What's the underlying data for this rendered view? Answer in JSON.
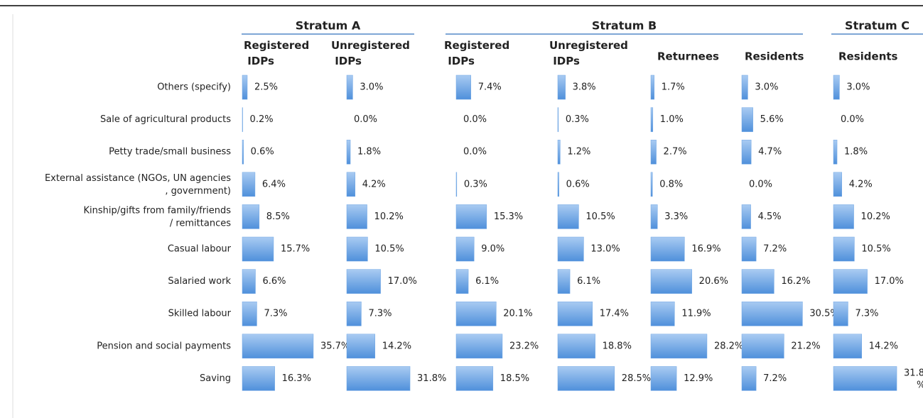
{
  "chart_data": {
    "type": "bar",
    "orientation": "horizontal",
    "categories": [
      "Others (specify)",
      "Sale of agricultural products",
      "Petty trade/small business",
      "External assistance (NGOs, UN agencies, government)",
      "Kinship/gifts from family/friends/ remittances",
      "Casual labour",
      "Salaried work",
      "Skilled labour",
      "Pension and social payments",
      "Saving"
    ],
    "groups": [
      {
        "name": "Stratum A",
        "series": [
          {
            "name": "Registered IDPs",
            "color": "#6fa6e4",
            "values": [
              2.5,
              0.2,
              0.6,
              6.4,
              8.5,
              15.7,
              6.6,
              7.3,
              35.7,
              16.3
            ],
            "value_labels": [
              "2.5%",
              "0.2%",
              "0.6%",
              "6.4%",
              "8.5%",
              "15.7%",
              "6.6%",
              "7.3%",
              "35.7%",
              "16.3%"
            ]
          },
          {
            "name": "Unregistered IDPs",
            "color": "#6fa6e4",
            "values": [
              3.0,
              0.0,
              1.8,
              4.2,
              10.2,
              10.5,
              17.0,
              7.3,
              14.2,
              31.8
            ],
            "value_labels": [
              "3.0%",
              "0.0%",
              "1.8%",
              "4.2%",
              "10.2%",
              "10.5%",
              "17.0%",
              "7.3%",
              "14.2%",
              "31.8%"
            ]
          }
        ]
      },
      {
        "name": "Stratum B",
        "series": [
          {
            "name": "Registered IDPs",
            "color": "#6fa6e4",
            "values": [
              7.4,
              0.0,
              0.0,
              0.3,
              15.3,
              9.0,
              6.1,
              20.1,
              23.2,
              18.5
            ],
            "value_labels": [
              "7.4%",
              "0.0%",
              "0.0%",
              "0.3%",
              "15.3%",
              "9.0%",
              "6.1%",
              "20.1%",
              "23.2%",
              "18.5%"
            ]
          },
          {
            "name": "Unregistered IDPs",
            "color": "#6fa6e4",
            "values": [
              3.8,
              0.3,
              1.2,
              0.6,
              10.5,
              13.0,
              6.1,
              17.4,
              18.8,
              28.5
            ],
            "value_labels": [
              "3.8%",
              "0.3%",
              "1.2%",
              "0.6%",
              "10.5%",
              "13.0%",
              "6.1%",
              "17.4%",
              "18.8%",
              "28.5%"
            ]
          },
          {
            "name": "Returnees",
            "color": "#6fa6e4",
            "values": [
              1.7,
              1.0,
              2.7,
              0.8,
              3.3,
              16.9,
              20.6,
              11.9,
              28.2,
              12.9
            ],
            "value_labels": [
              "1.7%",
              "1.0%",
              "2.7%",
              "0.8%",
              "3.3%",
              "16.9%",
              "20.6%",
              "11.9%",
              "28.2%",
              "12.9%"
            ]
          },
          {
            "name": "Residents",
            "color": "#6fa6e4",
            "values": [
              3.0,
              5.6,
              4.7,
              0.0,
              4.5,
              7.2,
              16.2,
              30.5,
              21.2,
              7.2
            ],
            "value_labels": [
              "3.0%",
              "5.6%",
              "4.7%",
              "0.0%",
              "4.5%",
              "7.2%",
              "16.2%",
              "30.5%",
              "21.2%",
              "7.2%"
            ]
          }
        ]
      },
      {
        "name": "Stratum C",
        "series": [
          {
            "name": "Residents",
            "color": "#6fa6e4",
            "values": [
              3.0,
              0.0,
              1.8,
              4.2,
              10.2,
              10.5,
              17.0,
              7.3,
              14.2,
              31.8
            ],
            "value_labels": [
              "3.0%",
              "0.0%",
              "1.8%",
              "4.2%",
              "10.2%",
              "10.5%",
              "17.0%",
              "7.3%",
              "14.2%",
              "31.8%"
            ]
          }
        ]
      }
    ]
  }
}
